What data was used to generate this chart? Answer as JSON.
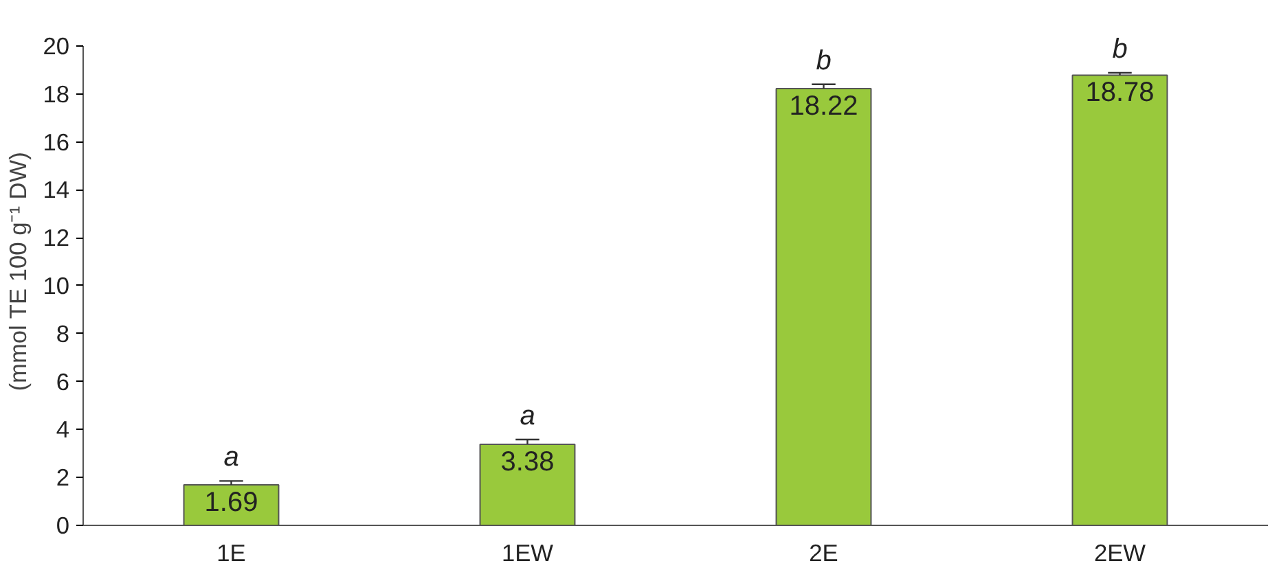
{
  "chart_data": {
    "type": "bar",
    "ylabel": "(mmol TE 100 g⁻¹ DW)",
    "categories": [
      "1E",
      "1EW",
      "2E",
      "2EW"
    ],
    "values": [
      1.69,
      3.38,
      18.22,
      18.78
    ],
    "color": "#99c93c",
    "errors": [
      [
        1.69,
        1.85
      ],
      [
        3.38,
        3.58
      ],
      [
        18.22,
        18.4
      ],
      [
        18.78,
        18.88
      ]
    ],
    "data_labels": true,
    "annotations": [
      {
        "text": "a",
        "x": "1E",
        "y": 1.85
      },
      {
        "text": "a",
        "x": "1EW",
        "y": 3.58
      },
      {
        "text": "b",
        "x": "2E",
        "y": 18.4
      },
      {
        "text": "b",
        "x": "2EW",
        "y": 18.88
      }
    ],
    "ylim": [
      0,
      20
    ],
    "yticks": [
      0,
      2,
      4,
      6,
      8,
      10,
      12,
      14,
      16,
      18,
      20
    ],
    "grid": false
  }
}
